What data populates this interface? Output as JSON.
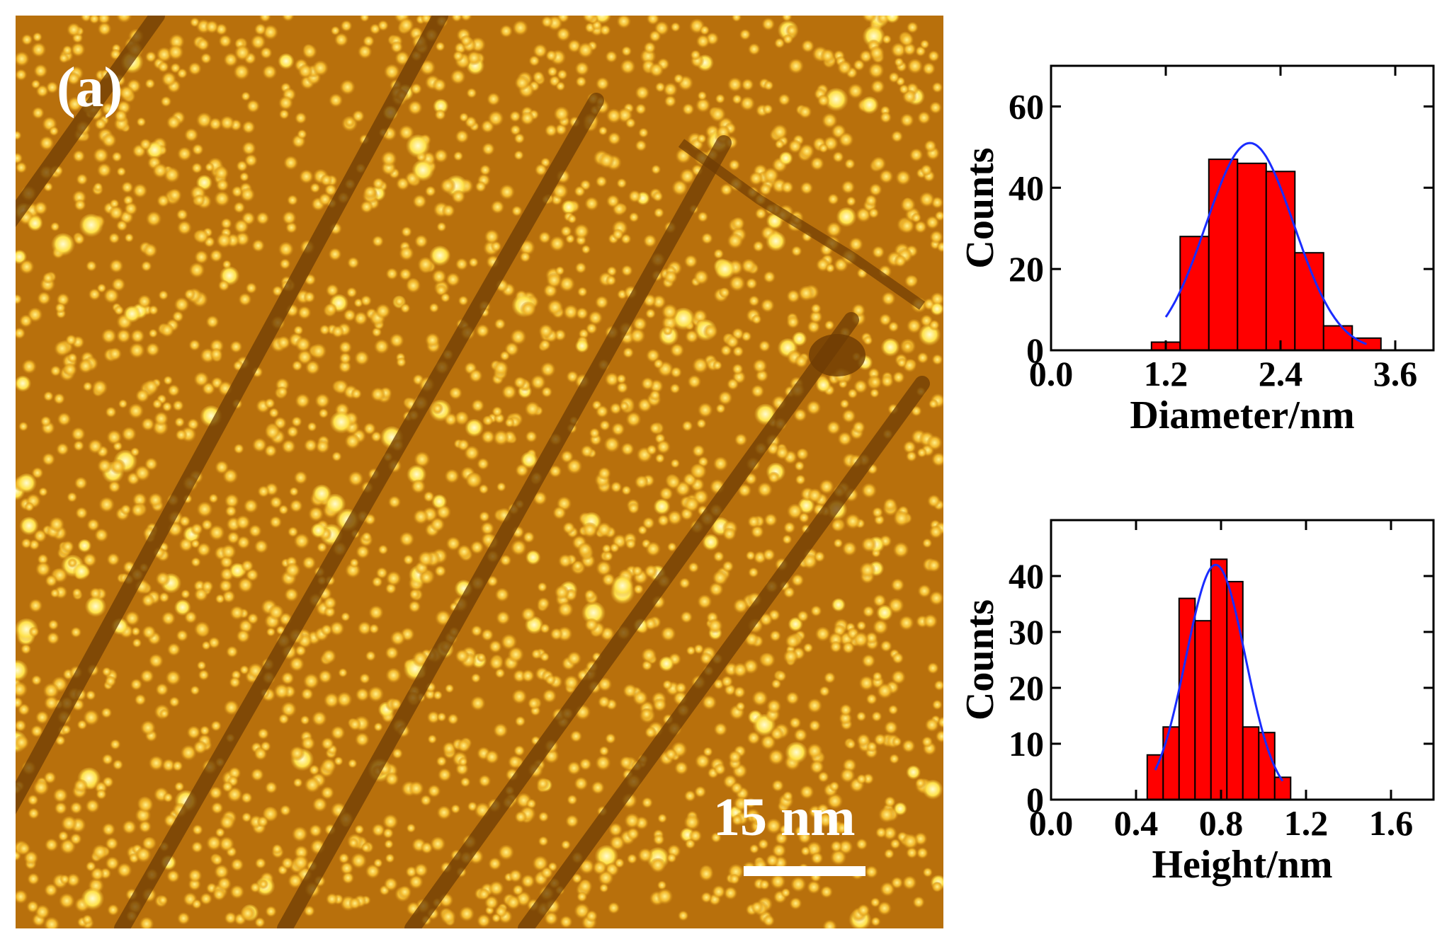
{
  "image": {
    "panel_label": "(a)",
    "scale_bar_label": "15 nm"
  },
  "colors": {
    "bar_fill": "#ff0000",
    "fit_line": "#1a2cff",
    "afm_dark": "#6e3c04",
    "afm_mid": "#b8700c",
    "afm_bright": "#ffd84a"
  },
  "chart_data": [
    {
      "type": "bar",
      "title": "",
      "xlabel": "Diameter/nm",
      "ylabel": "Counts",
      "xlim": [
        0.0,
        4.0
      ],
      "ylim": [
        0,
        70
      ],
      "xticks": [
        0.0,
        1.2,
        2.4,
        3.6
      ],
      "xtick_labels": [
        "0.0",
        "1.2",
        "2.4",
        "3.6"
      ],
      "yticks": [
        0,
        20,
        40,
        60
      ],
      "ytick_labels": [
        "0",
        "20",
        "40",
        "60"
      ],
      "bin_width": 0.3,
      "bin_centers": [
        1.2,
        1.5,
        1.8,
        2.1,
        2.4,
        2.7,
        3.0,
        3.3
      ],
      "values": [
        2,
        28,
        47,
        46,
        44,
        24,
        6,
        3
      ],
      "fit": {
        "type": "gaussian",
        "center": 2.08,
        "sigma": 0.46,
        "amplitude": 51,
        "x_range": [
          1.2,
          3.3
        ]
      }
    },
    {
      "type": "bar",
      "title": "",
      "xlabel": "Height/nm",
      "ylabel": "Counts",
      "xlim": [
        0.0,
        1.8
      ],
      "ylim": [
        0,
        50
      ],
      "xticks": [
        0.0,
        0.4,
        0.8,
        1.2,
        1.6
      ],
      "xtick_labels": [
        "0.0",
        "0.4",
        "0.8",
        "1.2",
        "1.6"
      ],
      "yticks": [
        0,
        10,
        20,
        30,
        40
      ],
      "ytick_labels": [
        "0",
        "10",
        "20",
        "30",
        "40"
      ],
      "bin_width": 0.075,
      "bin_centers": [
        0.49,
        0.565,
        0.64,
        0.715,
        0.79,
        0.865,
        0.94,
        1.015,
        1.09
      ],
      "values": [
        8,
        13,
        36,
        32,
        43,
        39,
        13,
        12,
        4
      ],
      "fit": {
        "type": "gaussian",
        "center": 0.775,
        "sigma": 0.14,
        "amplitude": 42,
        "x_range": [
          0.49,
          1.09
        ]
      }
    }
  ]
}
